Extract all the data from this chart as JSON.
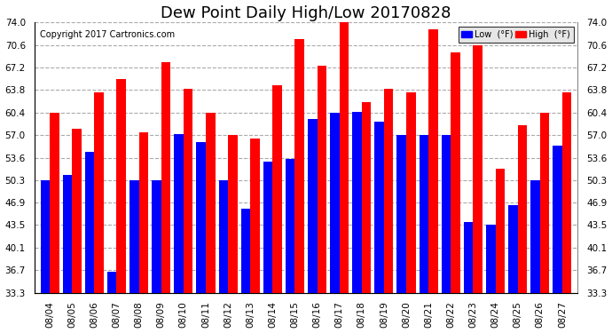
{
  "title": "Dew Point Daily High/Low 20170828",
  "copyright": "Copyright 2017 Cartronics.com",
  "dates": [
    "08/04",
    "08/05",
    "08/06",
    "08/07",
    "08/08",
    "08/09",
    "08/10",
    "08/11",
    "08/12",
    "08/13",
    "08/14",
    "08/15",
    "08/16",
    "08/17",
    "08/18",
    "08/19",
    "08/20",
    "08/21",
    "08/22",
    "08/23",
    "08/24",
    "08/25",
    "08/26",
    "08/27"
  ],
  "low": [
    50.3,
    51.0,
    54.5,
    36.5,
    50.3,
    50.3,
    57.2,
    56.0,
    50.3,
    46.0,
    53.0,
    53.5,
    59.5,
    60.4,
    60.5,
    59.0,
    57.0,
    57.0,
    57.0,
    44.0,
    43.5,
    46.5,
    50.3,
    55.5
  ],
  "high": [
    60.4,
    58.0,
    63.5,
    65.5,
    57.5,
    68.0,
    64.0,
    60.4,
    57.0,
    56.5,
    64.5,
    71.5,
    67.5,
    74.0,
    62.0,
    64.0,
    63.5,
    73.0,
    69.5,
    70.5,
    52.0,
    58.5,
    60.4,
    63.5
  ],
  "low_color": "#0000FF",
  "high_color": "#FF0000",
  "bg_color": "#FFFFFF",
  "grid_color": "#AAAAAA",
  "ymin": 33.3,
  "ymax": 74.0,
  "yticks": [
    33.3,
    36.7,
    40.1,
    43.5,
    46.9,
    50.3,
    53.6,
    57.0,
    60.4,
    63.8,
    67.2,
    70.6,
    74.0
  ],
  "legend_low_label": "Low  (°F)",
  "legend_high_label": "High  (°F)",
  "title_fontsize": 13,
  "copyright_fontsize": 7,
  "tick_fontsize": 7.5,
  "bar_width": 0.42
}
